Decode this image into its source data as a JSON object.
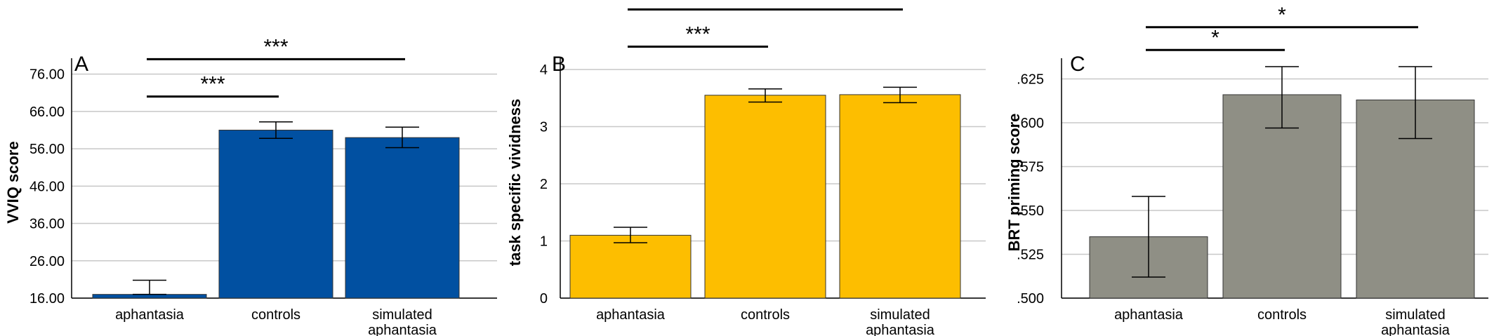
{
  "chart_data": [
    {
      "type": "bar",
      "panel": "A",
      "ylabel": "VVIQ score",
      "categories": [
        "aphantasia",
        "controls",
        "simulated\naphantasia"
      ],
      "values": [
        17.0,
        61.0,
        59.0
      ],
      "error_low": [
        17.0,
        58.8,
        56.3
      ],
      "error_high": [
        20.8,
        63.2,
        61.8
      ],
      "ylim": [
        16,
        78
      ],
      "yticks": [
        "16.00",
        "26.00",
        "36.00",
        "46.00",
        "56.00",
        "66.00",
        "76.00"
      ],
      "ytick_values": [
        16,
        26,
        36,
        46,
        56,
        66,
        76
      ],
      "bar_color": "#0150A1",
      "grid": true,
      "significance": [
        {
          "from": 0,
          "to": 1,
          "label": "***",
          "y": 70
        },
        {
          "from": 0,
          "to": 2,
          "label": "***",
          "y": 80
        }
      ]
    },
    {
      "type": "bar",
      "panel": "B",
      "ylabel": "task specific vividness",
      "categories": [
        "aphantasia",
        "controls",
        "simulated\naphantasia"
      ],
      "values": [
        1.1,
        3.55,
        3.56
      ],
      "error_low": [
        0.97,
        3.43,
        3.42
      ],
      "error_high": [
        1.24,
        3.66,
        3.69
      ],
      "ylim": [
        0,
        4.05
      ],
      "yticks": [
        "0",
        "1",
        "2",
        "3",
        "4"
      ],
      "ytick_values": [
        0,
        1,
        2,
        3,
        4
      ],
      "bar_color": "#FDBE00",
      "grid": true,
      "significance": [
        {
          "from": 0,
          "to": 1,
          "label": "***",
          "y": 4.4
        },
        {
          "from": 0,
          "to": 2,
          "label": "***",
          "y": 5.05
        }
      ]
    },
    {
      "type": "bar",
      "panel": "C",
      "ylabel": "BRT priming score",
      "categories": [
        "aphantasia",
        "controls",
        "simulated\naphantasia"
      ],
      "values": [
        0.535,
        0.616,
        0.613
      ],
      "error_low": [
        0.512,
        0.597,
        0.591
      ],
      "error_high": [
        0.558,
        0.632,
        0.632
      ],
      "ylim": [
        0.5,
        0.632
      ],
      "yticks": [
        ".500",
        ".525",
        ".550",
        ".575",
        ".600",
        ".625"
      ],
      "ytick_values": [
        0.5,
        0.525,
        0.55,
        0.575,
        0.6,
        0.625
      ],
      "bar_color": "#8F8F85",
      "grid": true,
      "significance": [
        {
          "from": 0,
          "to": 1,
          "label": "*",
          "y": 0.6415
        },
        {
          "from": 0,
          "to": 2,
          "label": "*",
          "y": 0.6545
        }
      ]
    }
  ]
}
